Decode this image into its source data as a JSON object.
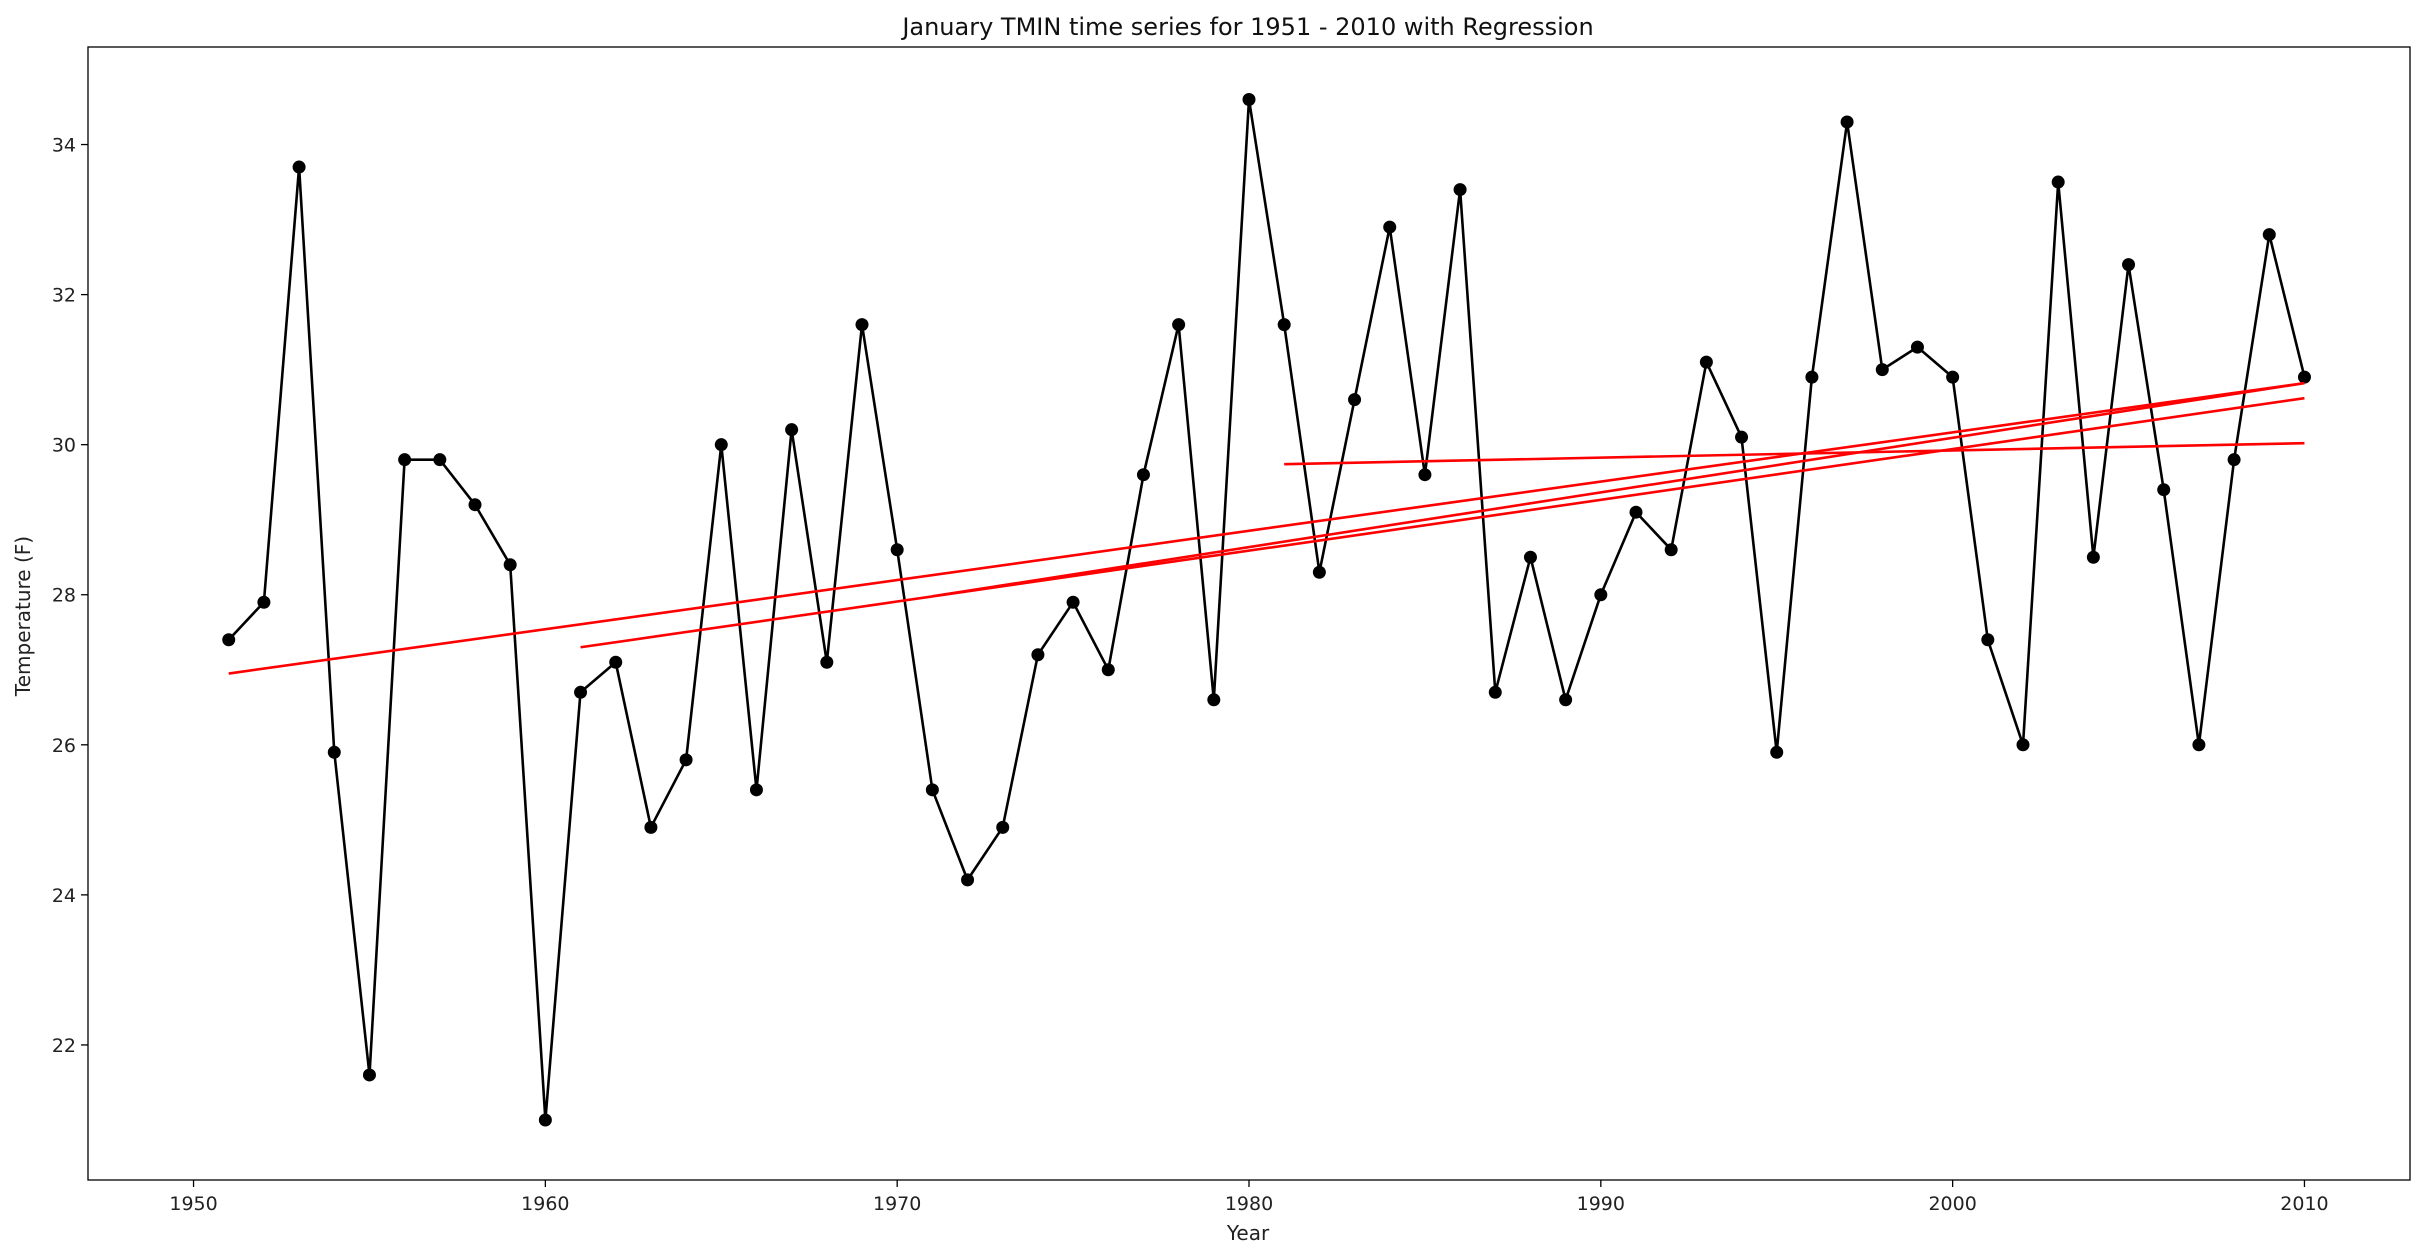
{
  "chart_data": {
    "type": "line",
    "title": "January TMIN time series for 1951 - 2010 with Regression",
    "xlabel": "Year",
    "ylabel": "Temperature (F)",
    "xlim": [
      1947,
      2013
    ],
    "ylim": [
      20.2,
      35.3
    ],
    "xticks": [
      1950,
      1960,
      1970,
      1980,
      1990,
      2000,
      2010
    ],
    "yticks": [
      22,
      24,
      26,
      28,
      30,
      32,
      34
    ],
    "grid": false,
    "legend": "none",
    "series": [
      {
        "color": "#000000",
        "marker": "circle",
        "x": [
          1951,
          1952,
          1953,
          1954,
          1955,
          1956,
          1957,
          1958,
          1959,
          1960,
          1961,
          1962,
          1963,
          1964,
          1965,
          1966,
          1967,
          1968,
          1969,
          1970,
          1971,
          1972,
          1973,
          1974,
          1975,
          1976,
          1977,
          1978,
          1979,
          1980,
          1981,
          1982,
          1983,
          1984,
          1985,
          1986,
          1987,
          1988,
          1989,
          1990,
          1991,
          1992,
          1993,
          1994,
          1995,
          1996,
          1997,
          1998,
          1999,
          2000,
          2001,
          2002,
          2003,
          2004,
          2005,
          2006,
          2007,
          2008,
          2009,
          2010
        ],
        "y": [
          27.4,
          27.9,
          33.7,
          25.9,
          21.6,
          29.8,
          29.8,
          29.2,
          28.4,
          21.0,
          26.7,
          27.1,
          24.9,
          25.8,
          30.0,
          25.4,
          30.2,
          27.1,
          31.6,
          28.6,
          25.4,
          24.2,
          24.9,
          27.2,
          27.9,
          27.0,
          29.6,
          31.6,
          26.6,
          34.6,
          31.6,
          28.3,
          30.6,
          32.9,
          29.6,
          33.4,
          26.7,
          28.5,
          26.6,
          28.0,
          29.1,
          28.6,
          31.1,
          30.1,
          25.9,
          30.9,
          34.3,
          31.0,
          31.3,
          30.9,
          27.4,
          26.0,
          33.5,
          28.5,
          32.4,
          29.4,
          26.0,
          29.8,
          32.8,
          30.9
        ]
      }
    ],
    "regression_lines": [
      {
        "color": "#ff0000",
        "x": [
          1951,
          2010
        ],
        "y": [
          26.95,
          30.82
        ]
      },
      {
        "color": "#ff0000",
        "x": [
          1961,
          2010
        ],
        "y": [
          27.3,
          30.62
        ]
      },
      {
        "color": "#ff0000",
        "x": [
          1971,
          2010
        ],
        "y": [
          27.98,
          30.82
        ]
      },
      {
        "color": "#ff0000",
        "x": [
          1981,
          2010
        ],
        "y": [
          29.74,
          30.02
        ]
      }
    ]
  }
}
